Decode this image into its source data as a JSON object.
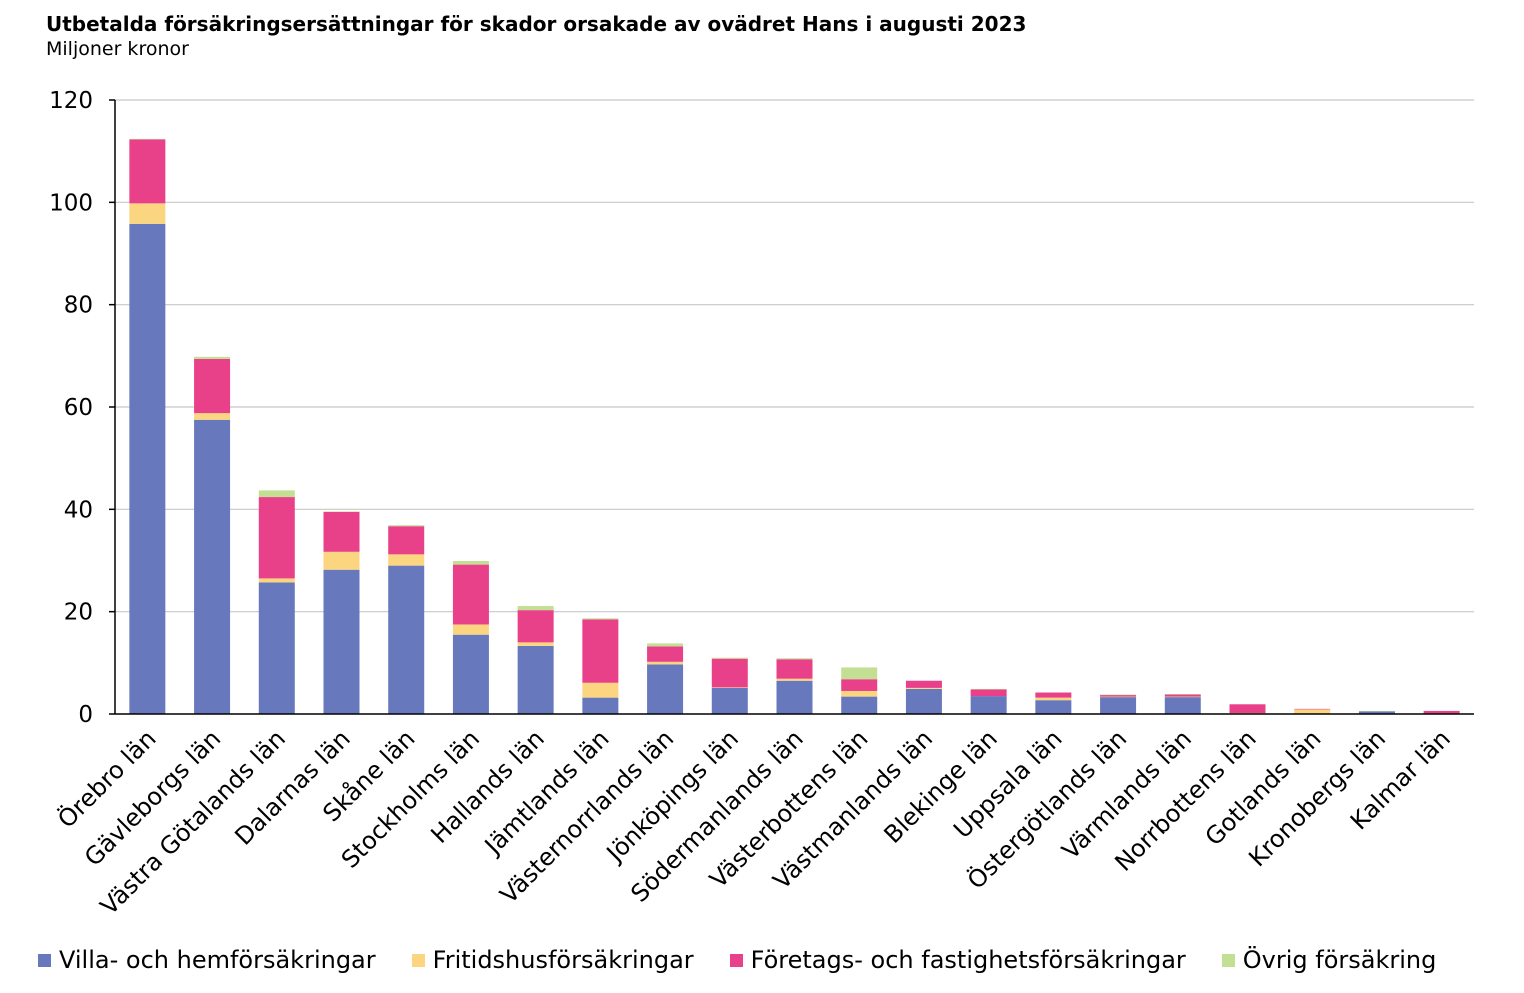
{
  "chart_data": {
    "type": "bar",
    "stacked": true,
    "title": "Utbetalda försäkringsersättningar för skador orsakade av ovädret Hans i augusti 2023",
    "subtitle": "Miljoner kronor",
    "ylim": [
      0,
      120
    ],
    "yticks": [
      0,
      20,
      40,
      60,
      80,
      100,
      120
    ],
    "grid": true,
    "legend_position": "bottom",
    "categories": [
      "Örebro län",
      "Gävleborgs län",
      "Västra Götalands län",
      "Dalarnas län",
      "Skåne län",
      "Stockholms län",
      "Hallands län",
      "Jämtlands län",
      "Västernorrlands län",
      "Jönköpings län",
      "Södermanlands län",
      "Västerbottens län",
      "Västmanlands län",
      "Blekinge län",
      "Uppsala län",
      "Östergötlands län",
      "Värmlands län",
      "Norrbottens län",
      "Gotlands län",
      "Kronobergs län",
      "Kalmar län"
    ],
    "series": [
      {
        "name": "Villa- och hemförsäkringar",
        "color": "#6779bc",
        "values": [
          95.8,
          57.5,
          25.7,
          28.2,
          29.0,
          15.5,
          13.3,
          3.2,
          9.7,
          5.1,
          6.5,
          3.4,
          4.9,
          3.5,
          2.7,
          3.3,
          3.3,
          0.0,
          0.0,
          0.5,
          0.1
        ]
      },
      {
        "name": "Fritidshusförsäkringar",
        "color": "#fcd581",
        "values": [
          4.0,
          1.3,
          0.8,
          3.5,
          2.2,
          2.0,
          0.7,
          2.9,
          0.5,
          0.1,
          0.4,
          1.1,
          0.2,
          0.0,
          0.5,
          0.1,
          0.1,
          0.2,
          0.9,
          0.0,
          0.0
        ]
      },
      {
        "name": "Företags- och fastighetsförsäkringar",
        "color": "#e94189",
        "values": [
          12.5,
          10.6,
          15.9,
          7.8,
          5.5,
          11.7,
          6.3,
          12.4,
          3.0,
          5.6,
          3.8,
          2.3,
          1.4,
          1.3,
          1.0,
          0.3,
          0.4,
          1.7,
          0.1,
          0.0,
          0.5
        ]
      },
      {
        "name": "Övrig försäkring",
        "color": "#c3df93",
        "values": [
          0.1,
          0.4,
          1.3,
          0.1,
          0.2,
          0.7,
          0.8,
          0.2,
          0.6,
          0.2,
          0.2,
          2.3,
          0.0,
          0.1,
          0.0,
          0.1,
          0.1,
          0.0,
          0.0,
          0.1,
          0.0
        ]
      }
    ]
  }
}
